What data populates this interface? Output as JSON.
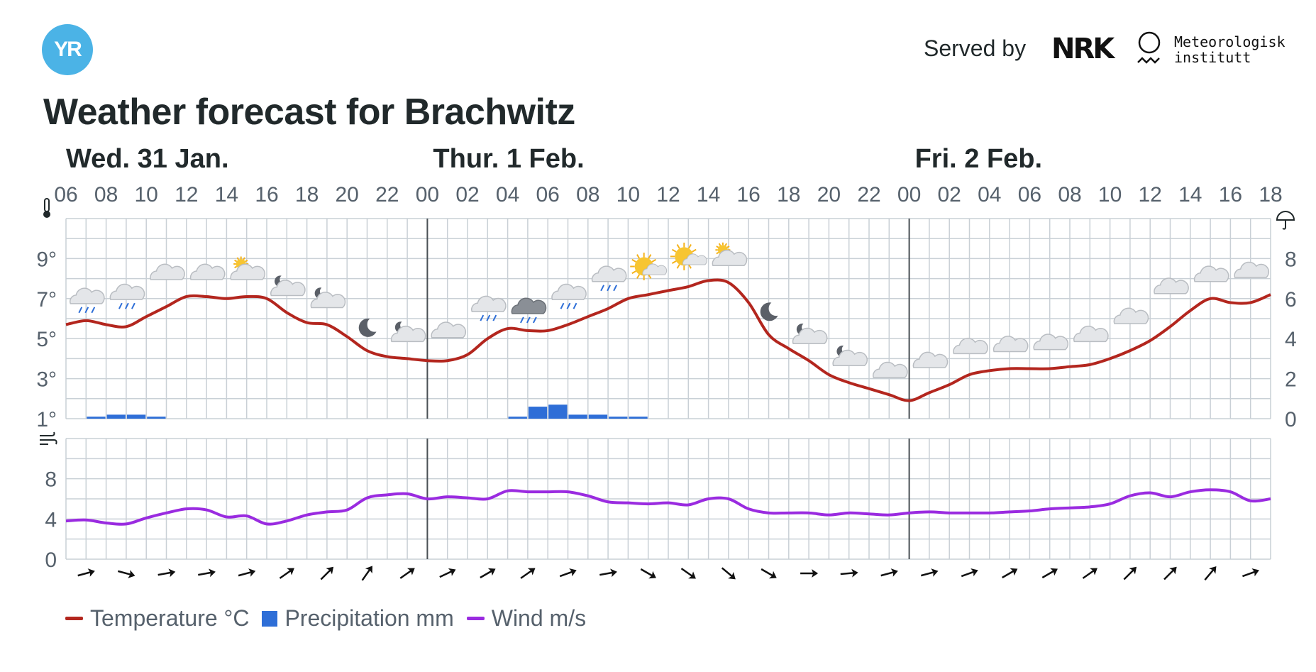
{
  "header": {
    "logo_text": "YR",
    "served_by": "Served by",
    "nrk_logo": "NRK",
    "met_name_line1": "Meteorologisk",
    "met_name_line2": "institutt"
  },
  "title": "Weather forecast for Brachwitz",
  "legend": {
    "temperature": "Temperature °C",
    "precipitation": "Precipitation mm",
    "wind": "Wind m/s"
  },
  "icons": {
    "temperature_axis": "thermometer-icon",
    "precipitation_axis": "umbrella-icon",
    "wind_axis": "wind-icon"
  },
  "colors": {
    "temperature": "#b3261e",
    "precipitation": "#2e6ed7",
    "wind": "#9a2be0",
    "grid": "#c9d0d6",
    "day_divider": "#4a5055",
    "axis_text": "#56616c"
  },
  "chart_data": {
    "type": "line",
    "days": [
      {
        "label": "Wed. 31 Jan.",
        "start_hour_index": 0
      },
      {
        "label": "Thur. 1 Feb.",
        "start_hour_index": 18
      },
      {
        "label": "Fri. 2 Feb.",
        "start_hour_index": 42
      }
    ],
    "hour_labels": [
      "06",
      "08",
      "10",
      "12",
      "14",
      "16",
      "18",
      "20",
      "22",
      "00",
      "02",
      "04",
      "06",
      "08",
      "10",
      "12",
      "14",
      "16",
      "18",
      "20",
      "22",
      "00",
      "02",
      "04",
      "06",
      "08",
      "10",
      "12",
      "14",
      "16",
      "18"
    ],
    "temperature": {
      "name": "Temperature °C",
      "unit": "°C",
      "axis_ticks": [
        "1°",
        "3°",
        "5°",
        "7°",
        "9°"
      ],
      "ylim": [
        1,
        11
      ],
      "values": [
        5.7,
        5.9,
        5.7,
        5.6,
        6.1,
        6.6,
        7.1,
        7.1,
        7.0,
        7.1,
        7.0,
        6.3,
        5.8,
        5.7,
        5.1,
        4.4,
        4.1,
        4.0,
        3.9,
        3.9,
        4.2,
        5.0,
        5.5,
        5.4,
        5.4,
        5.7,
        6.1,
        6.5,
        7.0,
        7.2,
        7.4,
        7.6,
        7.9,
        7.8,
        6.8,
        5.2,
        4.5,
        3.9,
        3.2,
        2.8,
        2.5,
        2.2,
        1.9,
        2.3,
        2.7,
        3.2,
        3.4,
        3.5,
        3.5,
        3.5,
        3.6,
        3.7,
        4.0,
        4.4,
        4.9,
        5.6,
        6.4,
        7.0,
        6.8,
        6.8,
        7.2
      ]
    },
    "precipitation": {
      "name": "Precipitation mm",
      "unit": "mm",
      "axis_ticks": [
        "0",
        "2",
        "4",
        "6",
        "8"
      ],
      "ylim": [
        0,
        10
      ],
      "values": [
        0,
        0.1,
        0.2,
        0.2,
        0.1,
        0,
        0,
        0,
        0,
        0,
        0,
        0,
        0,
        0,
        0,
        0,
        0,
        0,
        0,
        0,
        0,
        0,
        0.1,
        0.6,
        0.7,
        0.2,
        0.2,
        0.1,
        0.1,
        0,
        0,
        0,
        0,
        0,
        0,
        0,
        0,
        0,
        0,
        0,
        0,
        0,
        0,
        0,
        0,
        0,
        0,
        0,
        0,
        0,
        0,
        0,
        0,
        0,
        0,
        0,
        0,
        0,
        0,
        0
      ]
    },
    "wind": {
      "name": "Wind m/s",
      "unit": "m/s",
      "axis_ticks": [
        "0",
        "4",
        "8"
      ],
      "ylim": [
        0,
        12
      ],
      "values": [
        3.8,
        3.9,
        3.6,
        3.5,
        4.1,
        4.6,
        5.0,
        4.9,
        4.2,
        4.3,
        3.5,
        3.8,
        4.4,
        4.7,
        4.9,
        6.1,
        6.4,
        6.5,
        6.0,
        6.2,
        6.1,
        6.0,
        6.8,
        6.7,
        6.7,
        6.7,
        6.3,
        5.7,
        5.6,
        5.5,
        5.6,
        5.4,
        6.0,
        6.0,
        5.0,
        4.6,
        4.6,
        4.6,
        4.4,
        4.6,
        4.5,
        4.4,
        4.6,
        4.7,
        4.6,
        4.6,
        4.6,
        4.7,
        4.8,
        5.0,
        5.1,
        5.2,
        5.5,
        6.3,
        6.6,
        6.2,
        6.7,
        6.9,
        6.7,
        5.8,
        6.0
      ]
    },
    "weather_symbols": [
      {
        "hour_index": 1,
        "symbol": "rain-cloud-icon"
      },
      {
        "hour_index": 3,
        "symbol": "rain-cloud-icon"
      },
      {
        "hour_index": 5,
        "symbol": "cloud-icon"
      },
      {
        "hour_index": 7,
        "symbol": "cloud-icon"
      },
      {
        "hour_index": 9,
        "symbol": "partly-sunny-icon"
      },
      {
        "hour_index": 11,
        "symbol": "partly-cloudy-night-icon"
      },
      {
        "hour_index": 13,
        "symbol": "partly-cloudy-night-icon"
      },
      {
        "hour_index": 15,
        "symbol": "moon-icon"
      },
      {
        "hour_index": 17,
        "symbol": "partly-cloudy-night-icon"
      },
      {
        "hour_index": 19,
        "symbol": "cloud-icon"
      },
      {
        "hour_index": 21,
        "symbol": "rain-cloud-icon"
      },
      {
        "hour_index": 23,
        "symbol": "dark-rain-cloud-icon"
      },
      {
        "hour_index": 25,
        "symbol": "rain-cloud-icon"
      },
      {
        "hour_index": 27,
        "symbol": "rain-cloud-icon"
      },
      {
        "hour_index": 29,
        "symbol": "sun-cloud-icon"
      },
      {
        "hour_index": 31,
        "symbol": "sun-cloud-icon"
      },
      {
        "hour_index": 33,
        "symbol": "partly-sunny-icon"
      },
      {
        "hour_index": 35,
        "symbol": "moon-icon"
      },
      {
        "hour_index": 37,
        "symbol": "partly-cloudy-night-icon"
      },
      {
        "hour_index": 39,
        "symbol": "partly-cloudy-night-icon"
      },
      {
        "hour_index": 41,
        "symbol": "cloud-icon"
      },
      {
        "hour_index": 43,
        "symbol": "cloud-icon"
      },
      {
        "hour_index": 45,
        "symbol": "cloud-icon"
      },
      {
        "hour_index": 47,
        "symbol": "cloud-icon"
      },
      {
        "hour_index": 49,
        "symbol": "cloud-icon"
      },
      {
        "hour_index": 51,
        "symbol": "cloud-icon"
      },
      {
        "hour_index": 53,
        "symbol": "cloud-icon"
      },
      {
        "hour_index": 55,
        "symbol": "cloud-icon"
      },
      {
        "hour_index": 57,
        "symbol": "cloud-icon"
      },
      {
        "hour_index": 59,
        "symbol": "cloud-icon"
      }
    ],
    "wind_direction_deg": [
      75,
      105,
      80,
      80,
      75,
      55,
      45,
      35,
      55,
      65,
      60,
      55,
      70,
      80,
      120,
      125,
      130,
      120,
      90,
      85,
      75,
      75,
      70,
      60,
      60,
      55,
      45,
      45,
      40,
      70
    ],
    "grid": true,
    "legend_position": "bottom-left"
  }
}
